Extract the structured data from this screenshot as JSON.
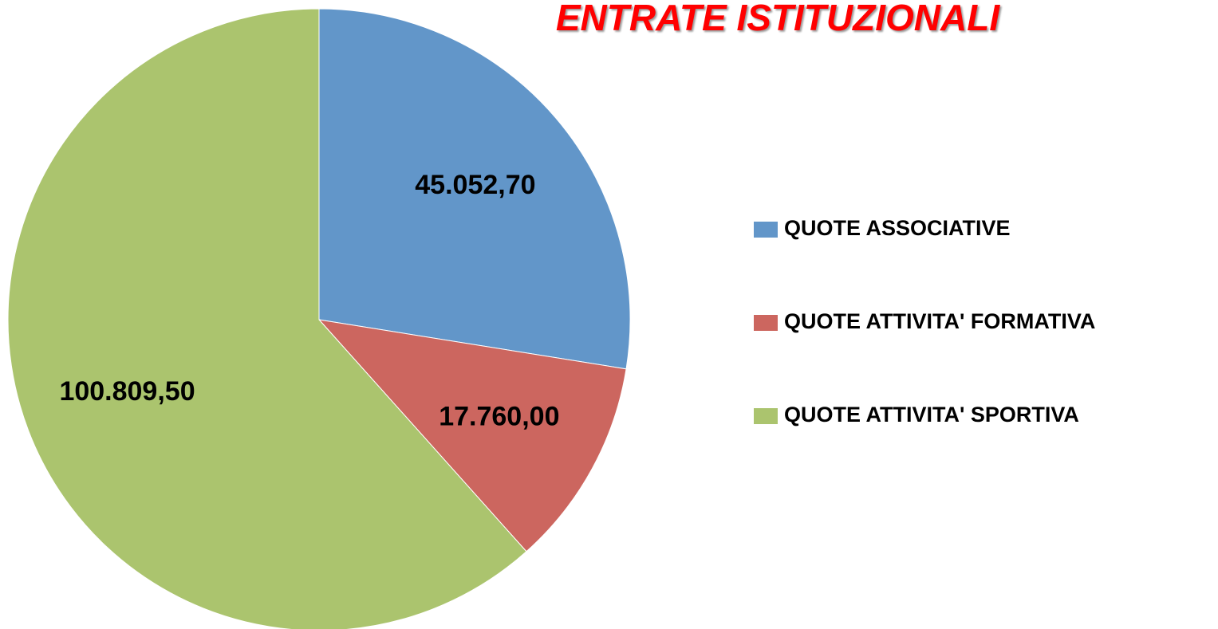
{
  "chart_data": {
    "type": "pie",
    "title": "ENTRATE ISTITUZIONALI",
    "categories": [
      "QUOTE ASSOCIATIVE",
      "QUOTE ATTIVITA' FORMATIVA",
      "QUOTE ATTIVITA' SPORTIVA"
    ],
    "values": [
      45052.7,
      17760.0,
      100809.5
    ],
    "value_labels": [
      "45.052,70",
      "17.760,00",
      "100.809,50"
    ],
    "colors": [
      "#6296c9",
      "#cc665f",
      "#abc46e"
    ],
    "legend": "right"
  }
}
